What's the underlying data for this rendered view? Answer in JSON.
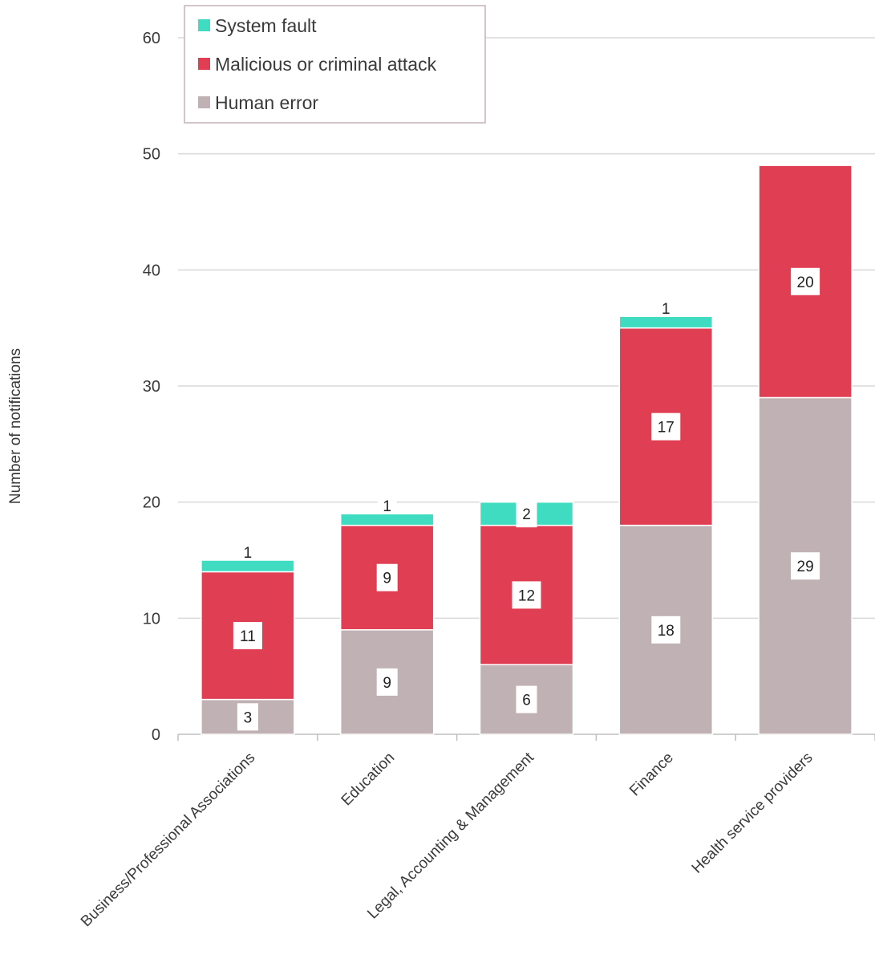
{
  "chart_data": {
    "type": "bar",
    "stacked": true,
    "categories": [
      "Business/Professional Associations",
      "Education",
      "Legal, Accounting & Management",
      "Finance",
      "Health service providers"
    ],
    "series": [
      {
        "name": "Human error",
        "color": "#c0b2b4",
        "values": [
          3,
          9,
          6,
          18,
          29
        ]
      },
      {
        "name": "Malicious or criminal attack",
        "color": "#e03e52",
        "values": [
          11,
          9,
          12,
          17,
          20
        ]
      },
      {
        "name": "System fault",
        "color": "#40dcc2",
        "values": [
          1,
          1,
          2,
          1,
          0
        ]
      }
    ],
    "ylabel": "Number of notifications",
    "ylim": [
      0,
      60
    ],
    "yticks": [
      0,
      10,
      20,
      30,
      40,
      50,
      60
    ],
    "ytick_labels": [
      "0",
      "10",
      "20",
      "30",
      "40",
      "50",
      "60"
    ],
    "grid": true,
    "legend_position": "top-left",
    "legend_order": [
      "System fault",
      "Malicious or criminal attack",
      "Human error"
    ]
  }
}
